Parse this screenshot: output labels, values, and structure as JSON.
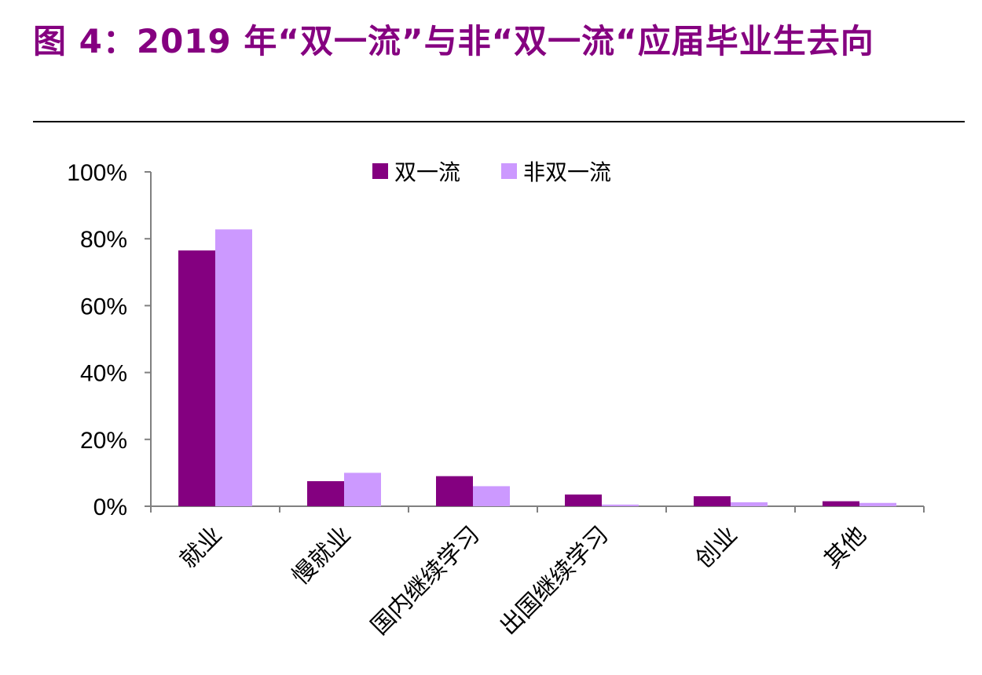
{
  "header": {
    "title": "图 4：2019 年“双一流”与非“双一流“应届毕业生去向"
  },
  "chart_data": {
    "type": "bar",
    "title": "",
    "xlabel": "",
    "ylabel": "",
    "categories": [
      "就业",
      "慢就业",
      "国内继续学习",
      "出国继续学习",
      "创业",
      "其他"
    ],
    "series": [
      {
        "name": "双一流",
        "values": [
          76.5,
          7.5,
          9.0,
          3.5,
          3.0,
          1.5
        ],
        "color": "#840080"
      },
      {
        "name": "非双一流",
        "values": [
          82.8,
          10.0,
          6.0,
          0.5,
          1.2,
          1.0
        ],
        "color": "#CC99FF"
      }
    ],
    "ylim": [
      0,
      100
    ],
    "yticks": [
      "0%",
      "20%",
      "40%",
      "60%",
      "80%",
      "100%"
    ],
    "grid": false,
    "legend": "top-center"
  }
}
